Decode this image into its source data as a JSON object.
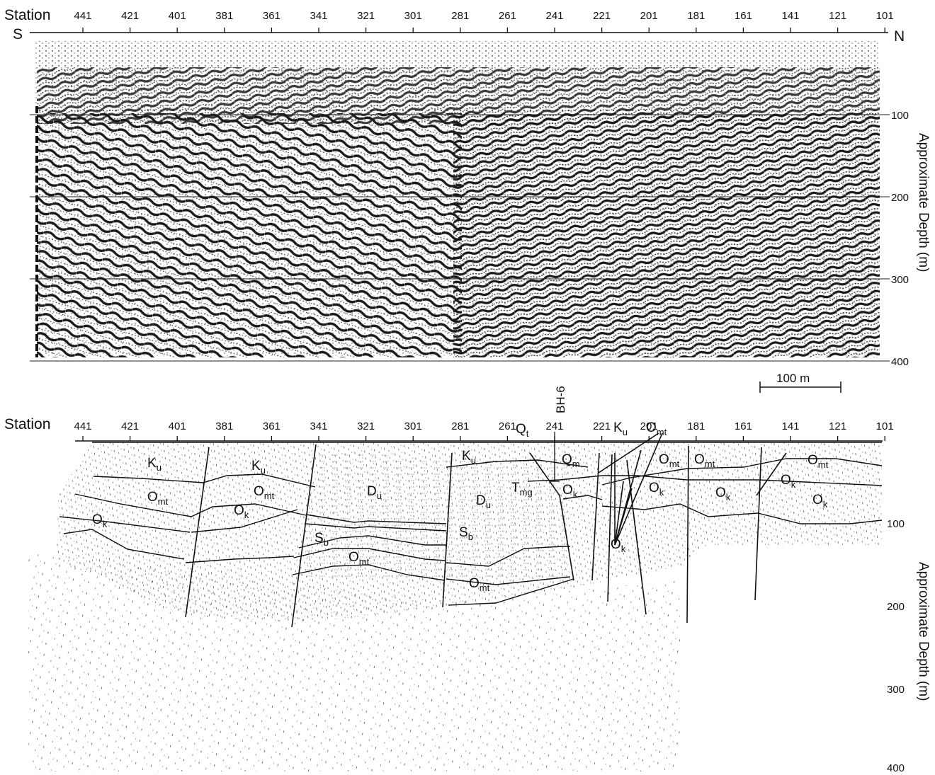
{
  "figure": {
    "top_panel": {
      "station_label": "Station",
      "stations": [
        "441",
        "421",
        "401",
        "381",
        "361",
        "341",
        "321",
        "301",
        "281",
        "261",
        "241",
        "221",
        "201",
        "181",
        "161",
        "141",
        "121",
        "101"
      ],
      "south_label": "S",
      "north_label": "N",
      "depth_ticks": [
        "100",
        "200",
        "300",
        "400"
      ],
      "depth_axis_title": "Approximate Depth (m)",
      "scale_bar_label": "100 m"
    },
    "bottom_panel": {
      "station_label": "Station",
      "stations": [
        "441",
        "421",
        "401",
        "381",
        "361",
        "341",
        "321",
        "301",
        "281",
        "261",
        "241",
        "221",
        "201",
        "181",
        "161",
        "141",
        "121",
        "101"
      ],
      "borehole_label": "BH-6",
      "depth_ticks": [
        "100",
        "200",
        "300",
        "400"
      ],
      "depth_axis_title": "Approximate Depth (m)",
      "units": [
        {
          "main": "K",
          "sub": "u"
        },
        {
          "main": "K",
          "sub": "u"
        },
        {
          "main": "K",
          "sub": "u"
        },
        {
          "main": "K",
          "sub": "u"
        },
        {
          "main": "O",
          "sub": "mt"
        },
        {
          "main": "O",
          "sub": "mt"
        },
        {
          "main": "O",
          "sub": "mt"
        },
        {
          "main": "O",
          "sub": "mt"
        },
        {
          "main": "O",
          "sub": "mt"
        },
        {
          "main": "O",
          "sub": "mt"
        },
        {
          "main": "O",
          "sub": "mt"
        },
        {
          "main": "O",
          "sub": "mt"
        },
        {
          "main": "O",
          "sub": "k"
        },
        {
          "main": "O",
          "sub": "k"
        },
        {
          "main": "O",
          "sub": "k"
        },
        {
          "main": "O",
          "sub": "k"
        },
        {
          "main": "O",
          "sub": "k"
        },
        {
          "main": "O",
          "sub": "k"
        },
        {
          "main": "O",
          "sub": "k"
        },
        {
          "main": "O",
          "sub": "k"
        },
        {
          "main": "D",
          "sub": "u"
        },
        {
          "main": "D",
          "sub": "u"
        },
        {
          "main": "S",
          "sub": "b"
        },
        {
          "main": "S",
          "sub": "b"
        },
        {
          "main": "Q",
          "sub": "t"
        },
        {
          "main": "Q",
          "sub": "m"
        },
        {
          "main": "T",
          "sub": "mg"
        }
      ]
    }
  }
}
